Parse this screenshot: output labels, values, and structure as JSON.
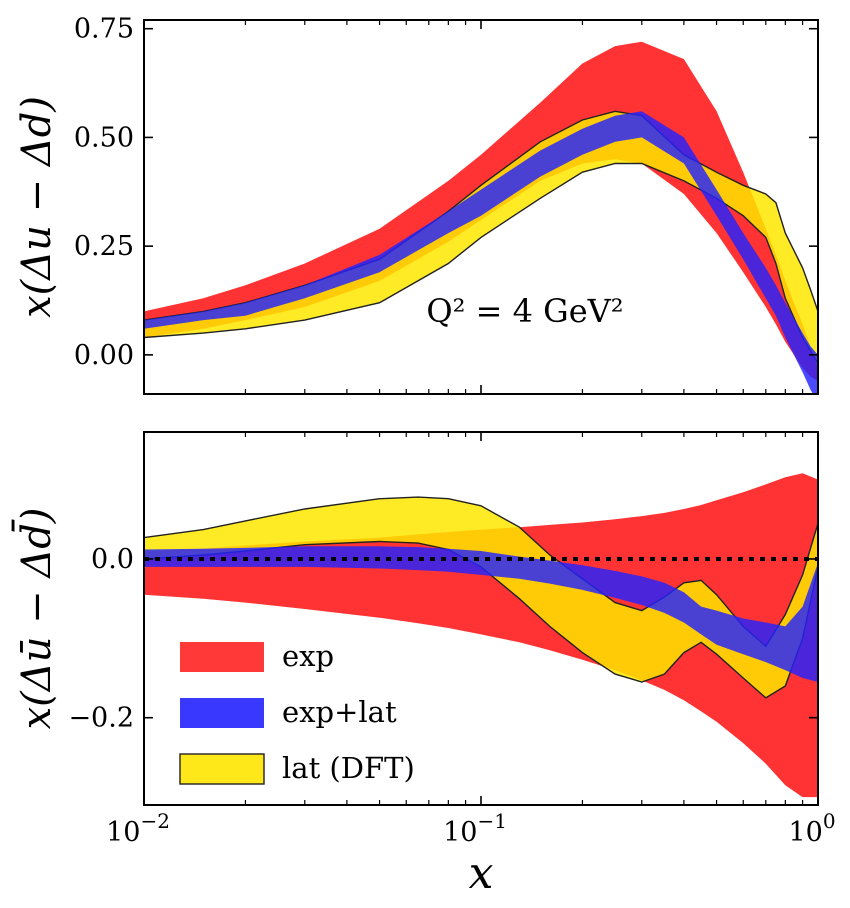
{
  "chart_data": [
    {
      "type": "area",
      "panel": "top",
      "xscale": "log",
      "xlim": [
        0.01,
        1.0
      ],
      "ylim": [
        -0.09,
        0.77
      ],
      "ylabel": "x(Δu − Δd)",
      "annotation": "Q² = 4 GeV²",
      "yticks": [
        {
          "value": 0.0,
          "label": "0.00"
        },
        {
          "value": 0.25,
          "label": "0.25"
        },
        {
          "value": 0.5,
          "label": "0.50"
        },
        {
          "value": 0.75,
          "label": "0.75"
        }
      ],
      "x": [
        0.01,
        0.015,
        0.02,
        0.03,
        0.05,
        0.08,
        0.1,
        0.15,
        0.2,
        0.25,
        0.3,
        0.4,
        0.5,
        0.6,
        0.7,
        0.75,
        0.8,
        0.9,
        0.95,
        1.0
      ],
      "series": [
        {
          "name": "exp",
          "color": "#ff2222",
          "upper": [
            0.1,
            0.13,
            0.16,
            0.21,
            0.29,
            0.4,
            0.46,
            0.58,
            0.67,
            0.71,
            0.72,
            0.68,
            0.56,
            0.42,
            0.29,
            0.23,
            0.17,
            0.07,
            0.02,
            -0.03
          ],
          "lower": [
            0.04,
            0.06,
            0.08,
            0.11,
            0.17,
            0.26,
            0.31,
            0.4,
            0.44,
            0.45,
            0.44,
            0.37,
            0.28,
            0.19,
            0.11,
            0.07,
            0.03,
            -0.03,
            -0.05,
            -0.06
          ]
        },
        {
          "name": "lat (DFT)",
          "color": "#ffe600",
          "upper": [
            0.08,
            0.1,
            0.12,
            0.16,
            0.22,
            0.33,
            0.39,
            0.49,
            0.54,
            0.56,
            0.55,
            0.46,
            0.42,
            0.39,
            0.37,
            0.35,
            0.28,
            0.2,
            0.15,
            0.1
          ],
          "lower": [
            0.04,
            0.05,
            0.06,
            0.08,
            0.12,
            0.21,
            0.27,
            0.36,
            0.42,
            0.44,
            0.44,
            0.4,
            0.36,
            0.32,
            0.27,
            0.21,
            0.13,
            0.04,
            0.01,
            -0.02
          ]
        },
        {
          "name": "exp+lat",
          "color": "#2222ff",
          "upper": [
            0.08,
            0.1,
            0.12,
            0.16,
            0.23,
            0.33,
            0.38,
            0.47,
            0.52,
            0.55,
            0.56,
            0.5,
            0.38,
            0.28,
            0.2,
            0.16,
            0.12,
            0.05,
            0.02,
            0.0
          ],
          "lower": [
            0.06,
            0.08,
            0.09,
            0.13,
            0.19,
            0.28,
            0.32,
            0.41,
            0.46,
            0.49,
            0.5,
            0.44,
            0.32,
            0.22,
            0.13,
            0.09,
            0.04,
            -0.04,
            -0.08,
            -0.11
          ]
        }
      ]
    },
    {
      "type": "area",
      "panel": "bottom",
      "xscale": "log",
      "xlim": [
        0.01,
        1.0
      ],
      "ylim": [
        -0.31,
        0.16
      ],
      "ylabel": "x(Δū − Δd̄)",
      "xlabel": "x",
      "yticks": [
        {
          "value": -0.2,
          "label": "−0.2"
        },
        {
          "value": 0.0,
          "label": "0.0"
        }
      ],
      "xticks": [
        {
          "value": 0.01,
          "base": "10",
          "exp": "−2"
        },
        {
          "value": 0.1,
          "base": "10",
          "exp": "−1"
        },
        {
          "value": 1.0,
          "base": "10",
          "exp": "0"
        }
      ],
      "reference_line": 0.0,
      "x": [
        0.01,
        0.015,
        0.02,
        0.03,
        0.05,
        0.065,
        0.08,
        0.1,
        0.13,
        0.16,
        0.2,
        0.25,
        0.3,
        0.35,
        0.4,
        0.45,
        0.5,
        0.6,
        0.7,
        0.8,
        0.9,
        1.0
      ],
      "series": [
        {
          "name": "exp",
          "color": "#ff2222",
          "upper": [
            0.01,
            0.013,
            0.017,
            0.022,
            0.027,
            0.031,
            0.034,
            0.037,
            0.04,
            0.043,
            0.046,
            0.05,
            0.054,
            0.058,
            0.063,
            0.068,
            0.074,
            0.084,
            0.094,
            0.103,
            0.108,
            0.1
          ],
          "lower": [
            -0.045,
            -0.05,
            -0.055,
            -0.063,
            -0.074,
            -0.081,
            -0.087,
            -0.095,
            -0.105,
            -0.115,
            -0.127,
            -0.14,
            -0.153,
            -0.165,
            -0.178,
            -0.192,
            -0.205,
            -0.232,
            -0.258,
            -0.285,
            -0.3,
            -0.3
          ]
        },
        {
          "name": "lat (DFT)",
          "color": "#ffe600",
          "upper": [
            0.027,
            0.037,
            0.048,
            0.063,
            0.076,
            0.078,
            0.076,
            0.067,
            0.04,
            0.005,
            -0.025,
            -0.055,
            -0.065,
            -0.048,
            -0.03,
            -0.027,
            -0.045,
            -0.085,
            -0.11,
            -0.07,
            -0.02,
            0.045
          ],
          "lower": [
            0.0,
            0.005,
            0.01,
            0.018,
            0.022,
            0.02,
            0.012,
            -0.01,
            -0.05,
            -0.085,
            -0.118,
            -0.145,
            -0.155,
            -0.145,
            -0.118,
            -0.105,
            -0.12,
            -0.15,
            -0.175,
            -0.16,
            -0.1,
            -0.01
          ]
        },
        {
          "name": "exp+lat",
          "color": "#2222ff",
          "upper": [
            0.012,
            0.013,
            0.014,
            0.016,
            0.016,
            0.015,
            0.013,
            0.01,
            0.003,
            -0.002,
            -0.008,
            -0.015,
            -0.022,
            -0.03,
            -0.042,
            -0.06,
            -0.065,
            -0.075,
            -0.08,
            -0.085,
            -0.06,
            -0.005
          ],
          "lower": [
            -0.01,
            -0.01,
            -0.01,
            -0.01,
            -0.012,
            -0.014,
            -0.016,
            -0.02,
            -0.025,
            -0.031,
            -0.039,
            -0.049,
            -0.058,
            -0.068,
            -0.08,
            -0.095,
            -0.108,
            -0.12,
            -0.13,
            -0.14,
            -0.15,
            -0.155
          ]
        }
      ],
      "legend": {
        "position": "lower-left",
        "entries": [
          {
            "label": "exp",
            "color": "#ff2222"
          },
          {
            "label": "exp+lat",
            "color": "#2222ff"
          },
          {
            "label": "lat (DFT)",
            "color": "#ffe600"
          }
        ]
      }
    }
  ]
}
